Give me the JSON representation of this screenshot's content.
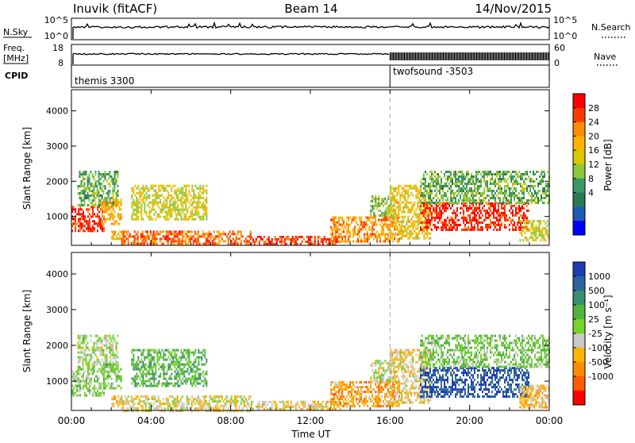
{
  "header": {
    "radar": "Inuvik (fitACF)",
    "beam": "Beam 14",
    "date": "14/Nov/2015"
  },
  "strips": {
    "nsky": {
      "label": "N.Sky",
      "ticks": [
        "10^5",
        "10^0"
      ]
    },
    "nsearch": {
      "label": "N.Search",
      "ticks": [
        "10^5",
        "10^0"
      ]
    },
    "freq": {
      "label_top": "Freq.",
      "label_bottom": "[MHz]",
      "ticks": [
        "18",
        "8"
      ]
    },
    "nave": {
      "label": "Nave",
      "ticks": [
        "60",
        "0"
      ]
    },
    "cpid": {
      "label": "CPID",
      "segments": [
        "themis 3300",
        "twofsound -3503"
      ]
    }
  },
  "power_panel": {
    "ylabel": "Slant Range [km]",
    "yticks": [
      "4000",
      "3000",
      "2000",
      "1000"
    ],
    "colorbar_label": "Power [dB]",
    "colorbar_ticks": [
      "28",
      "24",
      "20",
      "16",
      "12",
      "8",
      "4"
    ],
    "colors": [
      "#ff0000",
      "#ff3a00",
      "#ff8c00",
      "#ffb300",
      "#d8c800",
      "#8cc83c",
      "#3c9664",
      "#2d7850",
      "#1e5ab4",
      "#0000ff"
    ]
  },
  "velocity_panel": {
    "ylabel": "Slant Range [km]",
    "yticks": [
      "4000",
      "3000",
      "2000",
      "1000"
    ],
    "colorbar_label": "Velocity [m s⁻¹]",
    "colorbar_ticks": [
      "1000",
      "500",
      "100",
      "25",
      "-25",
      "-100",
      "-500",
      "-1000"
    ],
    "colors": [
      "#1e3cb4",
      "#2d64a0",
      "#3c8c6e",
      "#50b43c",
      "#78d22d",
      "#c8c8c8",
      "#ffb400",
      "#ff8c00",
      "#ff5a00",
      "#ff0000"
    ]
  },
  "xaxis": {
    "ticks": [
      "00:00",
      "04:00",
      "08:00",
      "12:00",
      "16:00",
      "20:00",
      "00:00"
    ],
    "label": "Time UT"
  },
  "chart_data": {
    "type": "heatmap",
    "title": "Inuvik (fitACF) Beam 14 14/Nov/2015",
    "xlabel": "Time UT",
    "ylabel": "Slant Range [km]",
    "x_range_hours": [
      0,
      24
    ],
    "y_range_km": [
      180,
      4600
    ],
    "power_scale_db": [
      0,
      30
    ],
    "velocity_scale": [
      -1000,
      1000
    ],
    "cpid_change_hour": 16.0,
    "power_regions": [
      {
        "t0": 0.0,
        "t1": 1.6,
        "r0": 600,
        "r1": 1300,
        "power": 26
      },
      {
        "t0": 0.3,
        "t1": 2.3,
        "r0": 1300,
        "r1": 2300,
        "power": 12
      },
      {
        "t0": 1.5,
        "t1": 2.5,
        "r0": 800,
        "r1": 1500,
        "power": 20
      },
      {
        "t0": 2.0,
        "t1": 2.7,
        "r0": 300,
        "r1": 600,
        "power": 20
      },
      {
        "t0": 3.0,
        "t1": 6.8,
        "r0": 900,
        "r1": 1900,
        "power": 16
      },
      {
        "t0": 2.5,
        "t1": 9.0,
        "r0": 200,
        "r1": 600,
        "power": 24
      },
      {
        "t0": 9.0,
        "t1": 13.5,
        "r0": 200,
        "r1": 450,
        "power": 26
      },
      {
        "t0": 13.0,
        "t1": 16.5,
        "r0": 300,
        "r1": 1000,
        "power": 22
      },
      {
        "t0": 15.0,
        "t1": 16.2,
        "r0": 1000,
        "r1": 1600,
        "power": 14
      },
      {
        "t0": 16.0,
        "t1": 18.0,
        "r0": 400,
        "r1": 1900,
        "power": 18
      },
      {
        "t0": 17.5,
        "t1": 23.0,
        "r0": 600,
        "r1": 1400,
        "power": 27
      },
      {
        "t0": 17.5,
        "t1": 24.0,
        "r0": 1400,
        "r1": 2300,
        "power": 12
      },
      {
        "t0": 22.5,
        "t1": 24.0,
        "r0": 300,
        "r1": 900,
        "power": 16
      }
    ],
    "velocity_regions": [
      {
        "t0": 0.0,
        "t1": 1.6,
        "r0": 600,
        "r1": 1300,
        "velocity": 50
      },
      {
        "t0": 0.3,
        "t1": 2.3,
        "r0": 1300,
        "r1": 2300,
        "velocity": 10
      },
      {
        "t0": 1.5,
        "t1": 2.5,
        "r0": 800,
        "r1": 1500,
        "velocity": 200
      },
      {
        "t0": 2.0,
        "t1": 2.7,
        "r0": 300,
        "r1": 600,
        "velocity": -300
      },
      {
        "t0": 3.0,
        "t1": 6.8,
        "r0": 900,
        "r1": 1900,
        "velocity": 300
      },
      {
        "t0": 2.5,
        "t1": 9.0,
        "r0": 200,
        "r1": 600,
        "velocity": -150
      },
      {
        "t0": 9.0,
        "t1": 13.5,
        "r0": 200,
        "r1": 450,
        "velocity": -200
      },
      {
        "t0": 13.0,
        "t1": 16.5,
        "r0": 300,
        "r1": 1000,
        "velocity": -400
      },
      {
        "t0": 15.0,
        "t1": 16.2,
        "r0": 1000,
        "r1": 1600,
        "velocity": -20
      },
      {
        "t0": 16.0,
        "t1": 18.0,
        "r0": 400,
        "r1": 1900,
        "velocity": -200
      },
      {
        "t0": 17.5,
        "t1": 23.0,
        "r0": 600,
        "r1": 1400,
        "velocity": 800
      },
      {
        "t0": 17.5,
        "t1": 24.0,
        "r0": 1400,
        "r1": 2300,
        "velocity": 150
      },
      {
        "t0": 22.5,
        "t1": 24.0,
        "r0": 300,
        "r1": 900,
        "velocity": -300
      }
    ]
  }
}
